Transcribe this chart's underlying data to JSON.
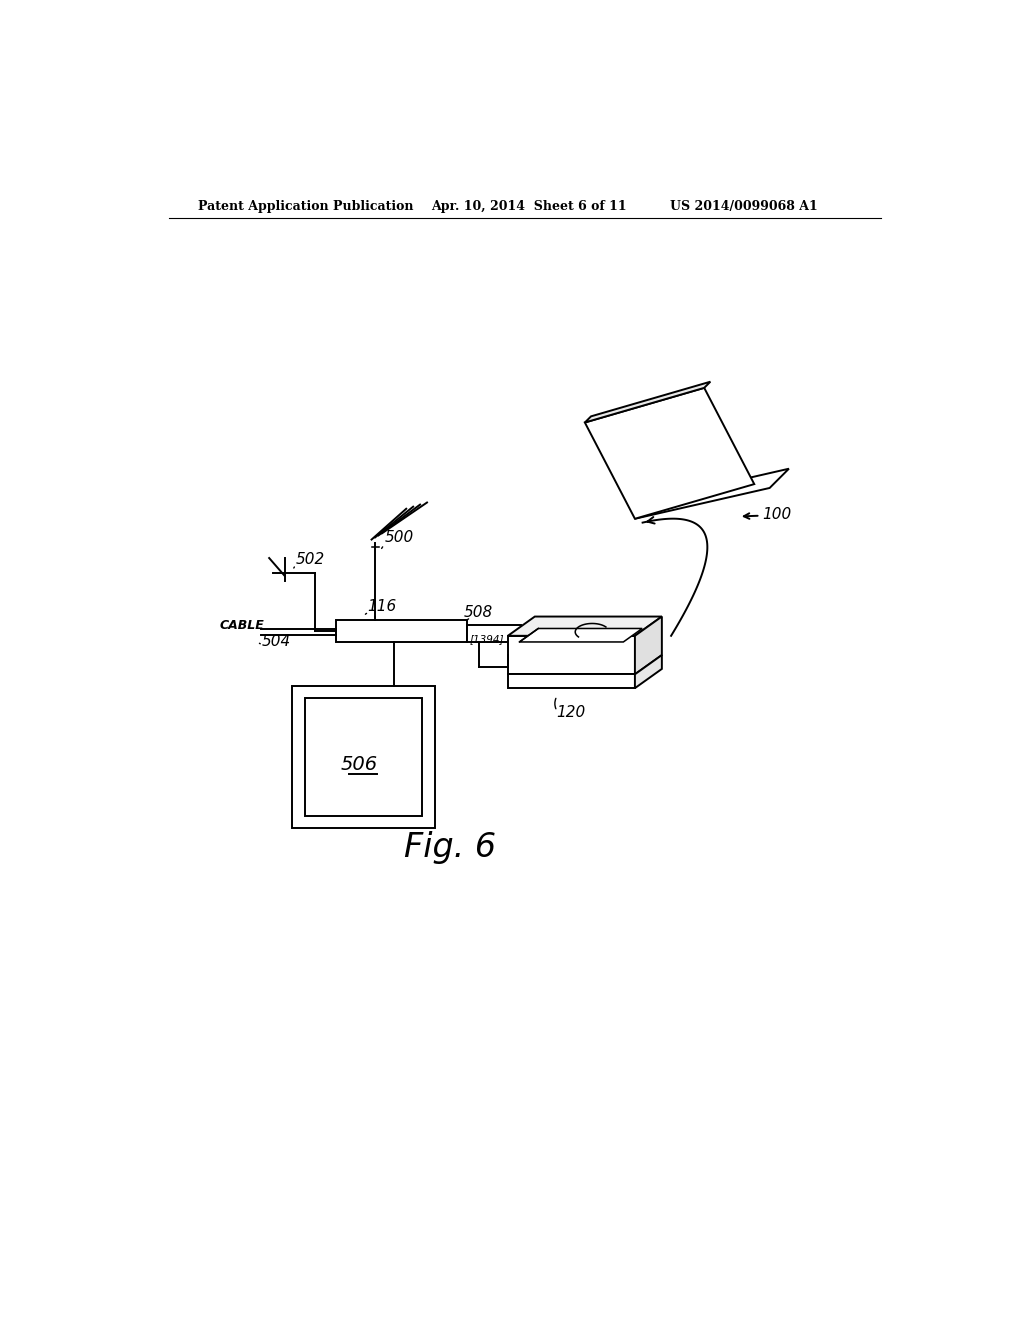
{
  "bg_color": "#ffffff",
  "header_left": "Patent Application Publication",
  "header_mid": "Apr. 10, 2014  Sheet 6 of 11",
  "header_right": "US 2014/0099068 A1",
  "fig_label": "Fig. 6"
}
